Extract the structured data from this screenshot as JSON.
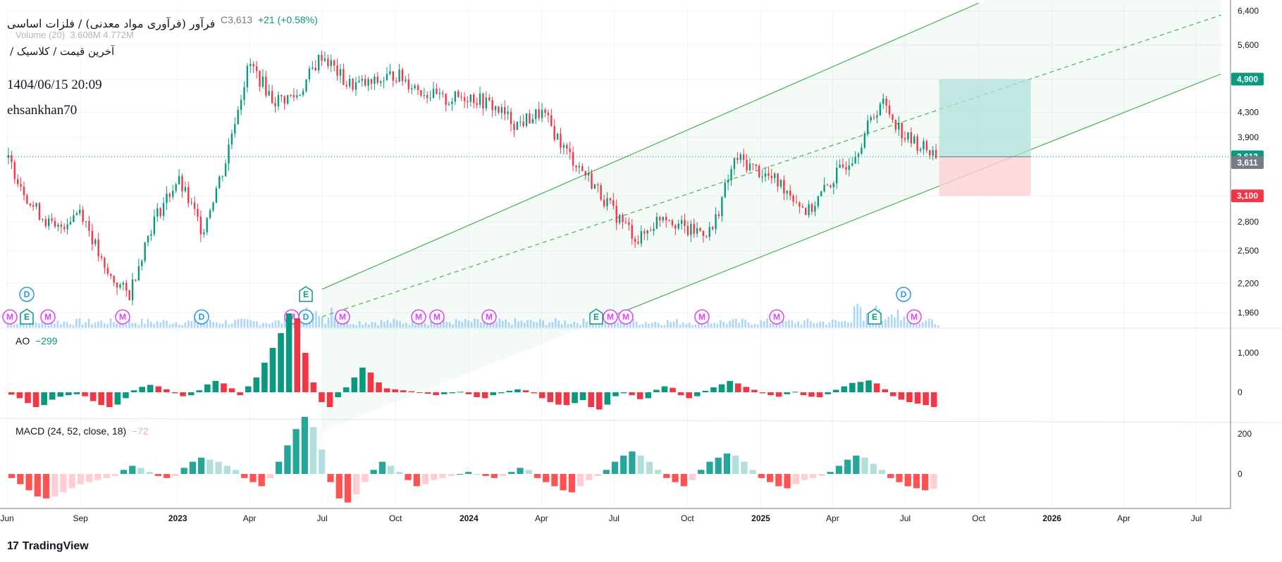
{
  "header": {
    "title": "فرآور (فرآوری مواد معدنی) / فلزات اساسی",
    "subtitle": "آخرین قیمت / کلاسیک /",
    "datetime": "1404/06/15 20:09",
    "user": "ehsankhan70",
    "ohlc_close": "C3,613",
    "ohlc_change": "+21 (+0.58%)",
    "volume_label": "Volume (20)",
    "volume_values": "3.608M  4.772M"
  },
  "panes": {
    "ao": {
      "name": "AO",
      "value": "−299"
    },
    "macd": {
      "name": "MACD (24, 52, close, 18)",
      "value": "−72"
    }
  },
  "price_axis": {
    "labels": [
      "6,400",
      "5,600",
      "4,900",
      "4,300",
      "3,900",
      "3,613",
      "3,611",
      "3,100",
      "2,800",
      "2,500",
      "2,200",
      "1,960"
    ],
    "tags": {
      "target": "4,900",
      "last": "3,613",
      "prev": "3,611",
      "stop": "3,100"
    }
  },
  "ao_axis": [
    "1,000",
    "0"
  ],
  "macd_axis": [
    "200",
    "0"
  ],
  "time_axis": [
    "Jun",
    "Sep",
    "2023",
    "Apr",
    "Jul",
    "Oct",
    "2024",
    "Apr",
    "Jul",
    "Oct",
    "2025",
    "Apr",
    "Jul",
    "Oct",
    "2026",
    "Apr",
    "Jul"
  ],
  "events": {
    "row1": [
      "D",
      "E",
      "D",
      "D"
    ],
    "row2": [
      "M",
      "E",
      "M",
      "M",
      "D",
      "M",
      "M",
      "M",
      "M",
      "M",
      "E",
      "M",
      "M",
      "M",
      "M",
      "E",
      "M"
    ]
  },
  "brand": "TradingView",
  "colors": {
    "up": "#089981",
    "down": "#f23645",
    "channel": "#4caf50",
    "volume": "#64b5f6",
    "target_zone": "#b2dfdb",
    "stop_zone": "#fcd1d5"
  },
  "chart_data": [
    {
      "type": "candlestick",
      "scale": "log",
      "y_range": [
        1850,
        6500
      ],
      "last_price": 3613,
      "series": [
        {
          "name": "price",
          "points": [
            {
              "t": "2022-06",
              "v": 3600
            },
            {
              "t": "2022-07",
              "v": 3000
            },
            {
              "t": "2022-08",
              "v": 2700
            },
            {
              "t": "2022-09",
              "v": 2950
            },
            {
              "t": "2022-10",
              "v": 2300
            },
            {
              "t": "2022-11",
              "v": 2100
            },
            {
              "t": "2022-12",
              "v": 2800
            },
            {
              "t": "2023-01",
              "v": 3300
            },
            {
              "t": "2023-02",
              "v": 2700
            },
            {
              "t": "2023-03",
              "v": 3500
            },
            {
              "t": "2023-04",
              "v": 5200
            },
            {
              "t": "2023-05",
              "v": 4500
            },
            {
              "t": "2023-06",
              "v": 4600
            },
            {
              "t": "2023-07",
              "v": 5400
            },
            {
              "t": "2023-08",
              "v": 4800
            },
            {
              "t": "2023-09",
              "v": 4800
            },
            {
              "t": "2023-10",
              "v": 5000
            },
            {
              "t": "2023-11",
              "v": 4700
            },
            {
              "t": "2023-12",
              "v": 4500
            },
            {
              "t": "2024-01",
              "v": 4600
            },
            {
              "t": "2024-02",
              "v": 4400
            },
            {
              "t": "2024-03",
              "v": 4100
            },
            {
              "t": "2024-04",
              "v": 4300
            },
            {
              "t": "2024-05",
              "v": 3700
            },
            {
              "t": "2024-06",
              "v": 3300
            },
            {
              "t": "2024-07",
              "v": 2900
            },
            {
              "t": "2024-08",
              "v": 2600
            },
            {
              "t": "2024-09",
              "v": 2900
            },
            {
              "t": "2024-10",
              "v": 2700
            },
            {
              "t": "2024-11",
              "v": 2700
            },
            {
              "t": "2024-12",
              "v": 3600
            },
            {
              "t": "2025-01",
              "v": 3400
            },
            {
              "t": "2025-02",
              "v": 3200
            },
            {
              "t": "2025-03",
              "v": 2900
            },
            {
              "t": "2025-04",
              "v": 3300
            },
            {
              "t": "2025-05",
              "v": 3700
            },
            {
              "t": "2025-06",
              "v": 4500
            },
            {
              "t": "2025-07",
              "v": 3900
            },
            {
              "t": "2025-08",
              "v": 3613
            }
          ]
        }
      ],
      "channel": {
        "upper": [
          {
            "t": "2023-07",
            "v": 2150
          },
          {
            "t": "2025-10",
            "v": 6600
          }
        ],
        "mid": [
          {
            "t": "2023-07",
            "v": 1930
          },
          {
            "t": "2026-08",
            "v": 6300
          }
        ],
        "lower": [
          {
            "t": "2024-06",
            "v": 1870
          },
          {
            "t": "2026-08",
            "v": 5000
          }
        ]
      },
      "position": {
        "entry": 3613,
        "target": 4900,
        "stop": 3100,
        "from": "2025-08",
        "to": "2025-12"
      }
    },
    {
      "type": "bar",
      "name": "AO",
      "last": -299,
      "y_ticks": [
        0,
        1000
      ],
      "series": [
        {
          "name": "AO",
          "values": [
            -50,
            -120,
            -220,
            -300,
            -260,
            -150,
            -90,
            -60,
            -40,
            -80,
            -180,
            -260,
            -300,
            -250,
            -120,
            40,
            110,
            150,
            120,
            60,
            -20,
            -80,
            -60,
            40,
            160,
            230,
            180,
            80,
            -60,
            120,
            300,
            600,
            900,
            1200,
            1600,
            1500,
            800,
            200,
            -200,
            -300,
            -100,
            100,
            300,
            500,
            400,
            200,
            80,
            60,
            40,
            20,
            -10,
            -30,
            -60,
            -40,
            -20,
            10,
            -40,
            -100,
            -120,
            -60,
            -20,
            30,
            60,
            40,
            -20,
            -120,
            -200,
            -250,
            -260,
            -220,
            -160,
            -300,
            -350,
            -250,
            -80,
            -20,
            -60,
            -140,
            -120,
            50,
            120,
            90,
            -60,
            -120,
            -80,
            30,
            100,
            160,
            230,
            180,
            110,
            50,
            -20,
            -60,
            -90,
            -40,
            10,
            -60,
            -90,
            -100,
            -40,
            50,
            120,
            190,
            210,
            240,
            180,
            60,
            -80,
            -150,
            -200,
            -230,
            -260,
            -299
          ]
        }
      ]
    },
    {
      "type": "bar",
      "name": "MACD (24, 52, close, 18)",
      "last": -72,
      "y_ticks": [
        0,
        200
      ],
      "series": [
        {
          "name": "MACD",
          "values": [
            -20,
            -50,
            -80,
            -110,
            -120,
            -110,
            -90,
            -70,
            -50,
            -40,
            -30,
            -20,
            -10,
            20,
            40,
            30,
            10,
            -10,
            -20,
            -10,
            30,
            60,
            80,
            70,
            60,
            40,
            20,
            -20,
            -40,
            -60,
            -20,
            60,
            140,
            220,
            280,
            230,
            120,
            -40,
            -120,
            -140,
            -100,
            -40,
            20,
            60,
            40,
            10,
            -30,
            -60,
            -50,
            -30,
            -20,
            -10,
            0,
            10,
            0,
            -10,
            -20,
            -10,
            10,
            30,
            20,
            -20,
            -40,
            -60,
            -80,
            -90,
            -60,
            -30,
            -10,
            20,
            60,
            90,
            110,
            90,
            60,
            20,
            -20,
            -40,
            -60,
            -30,
            20,
            60,
            80,
            100,
            90,
            60,
            20,
            -20,
            -40,
            -60,
            -70,
            -50,
            -30,
            -20,
            -10,
            10,
            40,
            70,
            90,
            80,
            50,
            20,
            -20,
            -40,
            -60,
            -70,
            -80,
            -72
          ]
        }
      ]
    }
  ]
}
